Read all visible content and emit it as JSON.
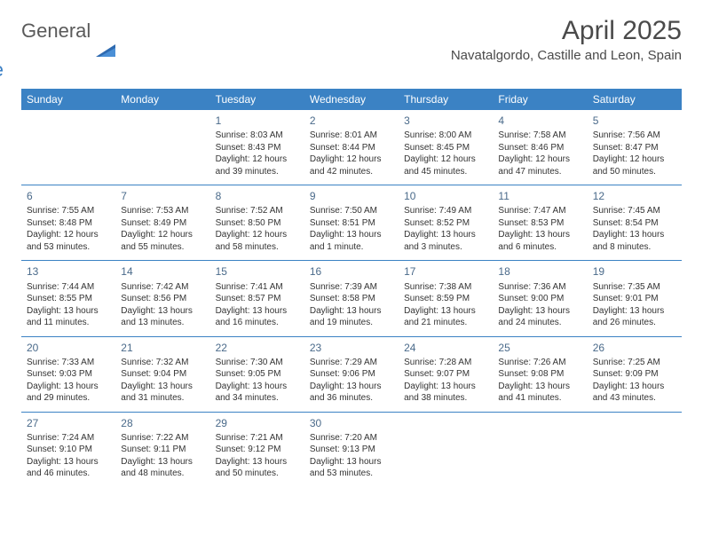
{
  "logo": {
    "general": "General",
    "blue": "Blue"
  },
  "title": "April 2025",
  "location": "Navatalgordo, Castille and Leon, Spain",
  "colors": {
    "header_bg": "#3b82c4",
    "header_text": "#ffffff",
    "border": "#3b82c4",
    "daynum": "#4a6a8a",
    "body_text": "#333333",
    "title_text": "#4a4a4a"
  },
  "weekdays": [
    "Sunday",
    "Monday",
    "Tuesday",
    "Wednesday",
    "Thursday",
    "Friday",
    "Saturday"
  ],
  "weeks": [
    [
      null,
      null,
      {
        "d": "1",
        "sr": "Sunrise: 8:03 AM",
        "ss": "Sunset: 8:43 PM",
        "dl1": "Daylight: 12 hours",
        "dl2": "and 39 minutes."
      },
      {
        "d": "2",
        "sr": "Sunrise: 8:01 AM",
        "ss": "Sunset: 8:44 PM",
        "dl1": "Daylight: 12 hours",
        "dl2": "and 42 minutes."
      },
      {
        "d": "3",
        "sr": "Sunrise: 8:00 AM",
        "ss": "Sunset: 8:45 PM",
        "dl1": "Daylight: 12 hours",
        "dl2": "and 45 minutes."
      },
      {
        "d": "4",
        "sr": "Sunrise: 7:58 AM",
        "ss": "Sunset: 8:46 PM",
        "dl1": "Daylight: 12 hours",
        "dl2": "and 47 minutes."
      },
      {
        "d": "5",
        "sr": "Sunrise: 7:56 AM",
        "ss": "Sunset: 8:47 PM",
        "dl1": "Daylight: 12 hours",
        "dl2": "and 50 minutes."
      }
    ],
    [
      {
        "d": "6",
        "sr": "Sunrise: 7:55 AM",
        "ss": "Sunset: 8:48 PM",
        "dl1": "Daylight: 12 hours",
        "dl2": "and 53 minutes."
      },
      {
        "d": "7",
        "sr": "Sunrise: 7:53 AM",
        "ss": "Sunset: 8:49 PM",
        "dl1": "Daylight: 12 hours",
        "dl2": "and 55 minutes."
      },
      {
        "d": "8",
        "sr": "Sunrise: 7:52 AM",
        "ss": "Sunset: 8:50 PM",
        "dl1": "Daylight: 12 hours",
        "dl2": "and 58 minutes."
      },
      {
        "d": "9",
        "sr": "Sunrise: 7:50 AM",
        "ss": "Sunset: 8:51 PM",
        "dl1": "Daylight: 13 hours",
        "dl2": "and 1 minute."
      },
      {
        "d": "10",
        "sr": "Sunrise: 7:49 AM",
        "ss": "Sunset: 8:52 PM",
        "dl1": "Daylight: 13 hours",
        "dl2": "and 3 minutes."
      },
      {
        "d": "11",
        "sr": "Sunrise: 7:47 AM",
        "ss": "Sunset: 8:53 PM",
        "dl1": "Daylight: 13 hours",
        "dl2": "and 6 minutes."
      },
      {
        "d": "12",
        "sr": "Sunrise: 7:45 AM",
        "ss": "Sunset: 8:54 PM",
        "dl1": "Daylight: 13 hours",
        "dl2": "and 8 minutes."
      }
    ],
    [
      {
        "d": "13",
        "sr": "Sunrise: 7:44 AM",
        "ss": "Sunset: 8:55 PM",
        "dl1": "Daylight: 13 hours",
        "dl2": "and 11 minutes."
      },
      {
        "d": "14",
        "sr": "Sunrise: 7:42 AM",
        "ss": "Sunset: 8:56 PM",
        "dl1": "Daylight: 13 hours",
        "dl2": "and 13 minutes."
      },
      {
        "d": "15",
        "sr": "Sunrise: 7:41 AM",
        "ss": "Sunset: 8:57 PM",
        "dl1": "Daylight: 13 hours",
        "dl2": "and 16 minutes."
      },
      {
        "d": "16",
        "sr": "Sunrise: 7:39 AM",
        "ss": "Sunset: 8:58 PM",
        "dl1": "Daylight: 13 hours",
        "dl2": "and 19 minutes."
      },
      {
        "d": "17",
        "sr": "Sunrise: 7:38 AM",
        "ss": "Sunset: 8:59 PM",
        "dl1": "Daylight: 13 hours",
        "dl2": "and 21 minutes."
      },
      {
        "d": "18",
        "sr": "Sunrise: 7:36 AM",
        "ss": "Sunset: 9:00 PM",
        "dl1": "Daylight: 13 hours",
        "dl2": "and 24 minutes."
      },
      {
        "d": "19",
        "sr": "Sunrise: 7:35 AM",
        "ss": "Sunset: 9:01 PM",
        "dl1": "Daylight: 13 hours",
        "dl2": "and 26 minutes."
      }
    ],
    [
      {
        "d": "20",
        "sr": "Sunrise: 7:33 AM",
        "ss": "Sunset: 9:03 PM",
        "dl1": "Daylight: 13 hours",
        "dl2": "and 29 minutes."
      },
      {
        "d": "21",
        "sr": "Sunrise: 7:32 AM",
        "ss": "Sunset: 9:04 PM",
        "dl1": "Daylight: 13 hours",
        "dl2": "and 31 minutes."
      },
      {
        "d": "22",
        "sr": "Sunrise: 7:30 AM",
        "ss": "Sunset: 9:05 PM",
        "dl1": "Daylight: 13 hours",
        "dl2": "and 34 minutes."
      },
      {
        "d": "23",
        "sr": "Sunrise: 7:29 AM",
        "ss": "Sunset: 9:06 PM",
        "dl1": "Daylight: 13 hours",
        "dl2": "and 36 minutes."
      },
      {
        "d": "24",
        "sr": "Sunrise: 7:28 AM",
        "ss": "Sunset: 9:07 PM",
        "dl1": "Daylight: 13 hours",
        "dl2": "and 38 minutes."
      },
      {
        "d": "25",
        "sr": "Sunrise: 7:26 AM",
        "ss": "Sunset: 9:08 PM",
        "dl1": "Daylight: 13 hours",
        "dl2": "and 41 minutes."
      },
      {
        "d": "26",
        "sr": "Sunrise: 7:25 AM",
        "ss": "Sunset: 9:09 PM",
        "dl1": "Daylight: 13 hours",
        "dl2": "and 43 minutes."
      }
    ],
    [
      {
        "d": "27",
        "sr": "Sunrise: 7:24 AM",
        "ss": "Sunset: 9:10 PM",
        "dl1": "Daylight: 13 hours",
        "dl2": "and 46 minutes."
      },
      {
        "d": "28",
        "sr": "Sunrise: 7:22 AM",
        "ss": "Sunset: 9:11 PM",
        "dl1": "Daylight: 13 hours",
        "dl2": "and 48 minutes."
      },
      {
        "d": "29",
        "sr": "Sunrise: 7:21 AM",
        "ss": "Sunset: 9:12 PM",
        "dl1": "Daylight: 13 hours",
        "dl2": "and 50 minutes."
      },
      {
        "d": "30",
        "sr": "Sunrise: 7:20 AM",
        "ss": "Sunset: 9:13 PM",
        "dl1": "Daylight: 13 hours",
        "dl2": "and 53 minutes."
      },
      null,
      null,
      null
    ]
  ]
}
